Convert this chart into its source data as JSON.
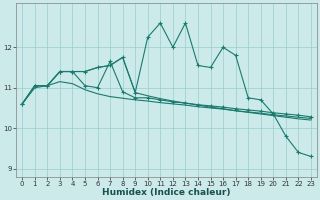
{
  "xlabel": "Humidex (Indice chaleur)",
  "bg_color": "#cceaea",
  "grid_color": "#99cccc",
  "line_color": "#1a7a6e",
  "xlim": [
    -0.5,
    23.5
  ],
  "ylim": [
    8.8,
    13.1
  ],
  "yticks": [
    9,
    10,
    11,
    12
  ],
  "xticks": [
    0,
    1,
    2,
    3,
    4,
    5,
    6,
    7,
    8,
    9,
    10,
    11,
    12,
    13,
    14,
    15,
    16,
    17,
    18,
    19,
    20,
    21,
    22,
    23
  ],
  "lines": [
    {
      "x": [
        0,
        1,
        2,
        3,
        4,
        5,
        6,
        7,
        8,
        9,
        10,
        11,
        12,
        13,
        14,
        15,
        16,
        17,
        18,
        19,
        20,
        21,
        22,
        23
      ],
      "y": [
        10.6,
        11.0,
        11.05,
        11.15,
        11.1,
        10.95,
        10.85,
        10.78,
        10.74,
        10.7,
        10.67,
        10.63,
        10.6,
        10.57,
        10.53,
        10.5,
        10.47,
        10.43,
        10.4,
        10.37,
        10.33,
        10.3,
        10.27,
        10.24
      ],
      "marker": false
    },
    {
      "x": [
        0,
        1,
        2,
        3,
        4,
        5,
        6,
        7,
        8,
        9,
        10,
        11,
        12,
        13,
        14,
        15,
        16,
        17,
        18,
        19,
        20,
        21,
        22,
        23
      ],
      "y": [
        10.6,
        11.05,
        11.05,
        11.4,
        11.4,
        11.05,
        11.0,
        11.65,
        10.9,
        10.75,
        10.75,
        10.7,
        10.65,
        10.62,
        10.58,
        10.55,
        10.52,
        10.48,
        10.45,
        10.42,
        10.38,
        10.35,
        10.32,
        10.28
      ],
      "marker": true
    },
    {
      "x": [
        0,
        1,
        2,
        3,
        4,
        5,
        6,
        7,
        8,
        9,
        10,
        11,
        12,
        13,
        14,
        15,
        16,
        17,
        18,
        19,
        20,
        21,
        22,
        23
      ],
      "y": [
        10.6,
        11.05,
        11.05,
        11.4,
        11.4,
        11.4,
        11.5,
        11.55,
        11.75,
        10.88,
        12.25,
        12.6,
        12.0,
        12.6,
        11.55,
        11.5,
        12.0,
        11.8,
        10.75,
        10.7,
        10.35,
        9.8,
        9.4,
        9.3
      ],
      "marker": true
    },
    {
      "x": [
        0,
        1,
        2,
        3,
        4,
        5,
        6,
        7,
        8,
        9,
        10,
        11,
        12,
        13,
        14,
        15,
        16,
        17,
        18,
        19,
        20,
        21,
        22,
        23
      ],
      "y": [
        10.6,
        11.05,
        11.05,
        11.4,
        11.4,
        11.4,
        11.5,
        11.55,
        11.75,
        10.88,
        10.8,
        10.73,
        10.67,
        10.62,
        10.57,
        10.52,
        10.48,
        10.43,
        10.39,
        10.35,
        10.31,
        10.27,
        10.23,
        10.2
      ],
      "marker": false
    }
  ]
}
